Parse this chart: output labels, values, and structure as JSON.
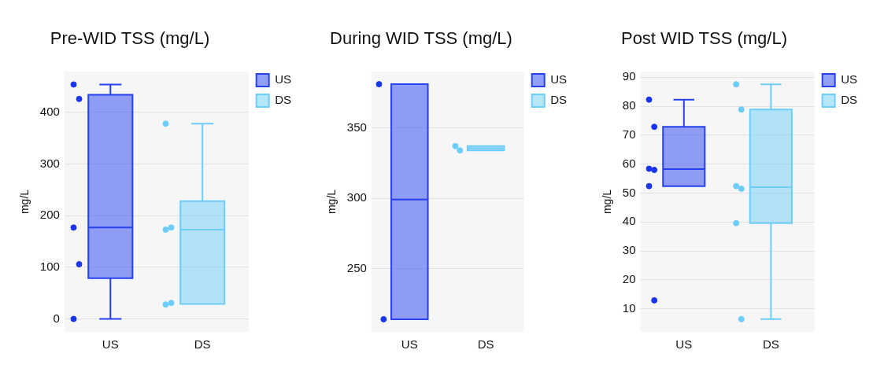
{
  "chart_data": [
    {
      "type": "box",
      "title": "Pre-WID TSS (mg/L)",
      "ylabel": "mg/L",
      "categories": [
        "US",
        "DS"
      ],
      "ylim": [
        -25,
        479
      ],
      "yticks": [
        0,
        100,
        200,
        300,
        400
      ],
      "grid": "y",
      "legend": "top right",
      "marker": "circle",
      "series": [
        {
          "name": "US",
          "color": "#2541f0",
          "boxes": [
            {
              "low": 0,
              "q1": 79,
              "median": 177,
              "q3": 434,
              "high": 454
            },
            null
          ]
        },
        {
          "name": "DS",
          "color": "#6dcdfa",
          "boxes": [
            null,
            {
              "low": 29,
              "q1": 29,
              "median": 173,
              "q3": 228,
              "high": 378
            }
          ]
        },
        {
          "type": "scatter",
          "color": "#1a35ef",
          "x": [
            "US",
            "US",
            "US",
            "US",
            "US"
          ],
          "values": [
            454,
            426,
            177,
            106,
            0
          ]
        },
        {
          "type": "scatter",
          "color": "#6dcdfa",
          "x": [
            "DS",
            "DS",
            "DS",
            "DS",
            "DS"
          ],
          "values": [
            378,
            177,
            173,
            31,
            28
          ]
        }
      ]
    },
    {
      "type": "box",
      "title": "During WID TSS (mg/L)",
      "ylabel": "mg/L",
      "categories": [
        "US",
        "DS"
      ],
      "ylim": [
        205,
        390
      ],
      "yticks": [
        250,
        300,
        350
      ],
      "grid": "y",
      "legend": "top right",
      "marker": "circle",
      "series": [
        {
          "name": "US",
          "color": "#2541f0",
          "boxes": [
            {
              "low": 214,
              "q1": 214,
              "median": 299,
              "q3": 381,
              "high": 381
            },
            null
          ]
        },
        {
          "name": "DS",
          "color": "#6dcdfa",
          "boxes": [
            null,
            {
              "low": 334,
              "q1": 334,
              "median": 335.5,
              "q3": 337,
              "high": 337
            }
          ]
        },
        {
          "type": "scatter",
          "color": "#1a35ef",
          "x": [
            "US",
            "US"
          ],
          "values": [
            381,
            214
          ]
        },
        {
          "type": "scatter",
          "color": "#6dcdfa",
          "x": [
            "DS",
            "DS"
          ],
          "values": [
            337,
            334
          ]
        }
      ]
    },
    {
      "type": "box",
      "title": "Post WID TSS (mg/L)",
      "ylabel": "mg/L",
      "categories": [
        "US",
        "DS"
      ],
      "ylim": [
        2,
        92
      ],
      "yticks": [
        10,
        20,
        30,
        40,
        50,
        60,
        70,
        80,
        90
      ],
      "grid": "y",
      "legend": "top right",
      "marker": "circle",
      "series": [
        {
          "name": "US",
          "color": "#2541f0",
          "boxes": [
            {
              "low": 52.4,
              "q1": 52.4,
              "median": 58.3,
              "q3": 72.9,
              "high": 82.3
            },
            null
          ]
        },
        {
          "name": "DS",
          "color": "#6dcdfa",
          "boxes": [
            null,
            {
              "low": 6.4,
              "q1": 39.6,
              "median": 52,
              "q3": 78.9,
              "high": 87.6
            }
          ]
        },
        {
          "type": "scatter",
          "color": "#1a35ef",
          "x": [
            "US",
            "US",
            "US",
            "US",
            "US",
            "US"
          ],
          "values": [
            82.3,
            72.9,
            58.4,
            58,
            52.4,
            12.9
          ]
        },
        {
          "type": "scatter",
          "color": "#6dcdfa",
          "x": [
            "DS",
            "DS",
            "DS",
            "DS",
            "DS",
            "DS"
          ],
          "values": [
            87.6,
            78.9,
            52.4,
            51.5,
            39.6,
            6.4
          ]
        }
      ]
    }
  ]
}
